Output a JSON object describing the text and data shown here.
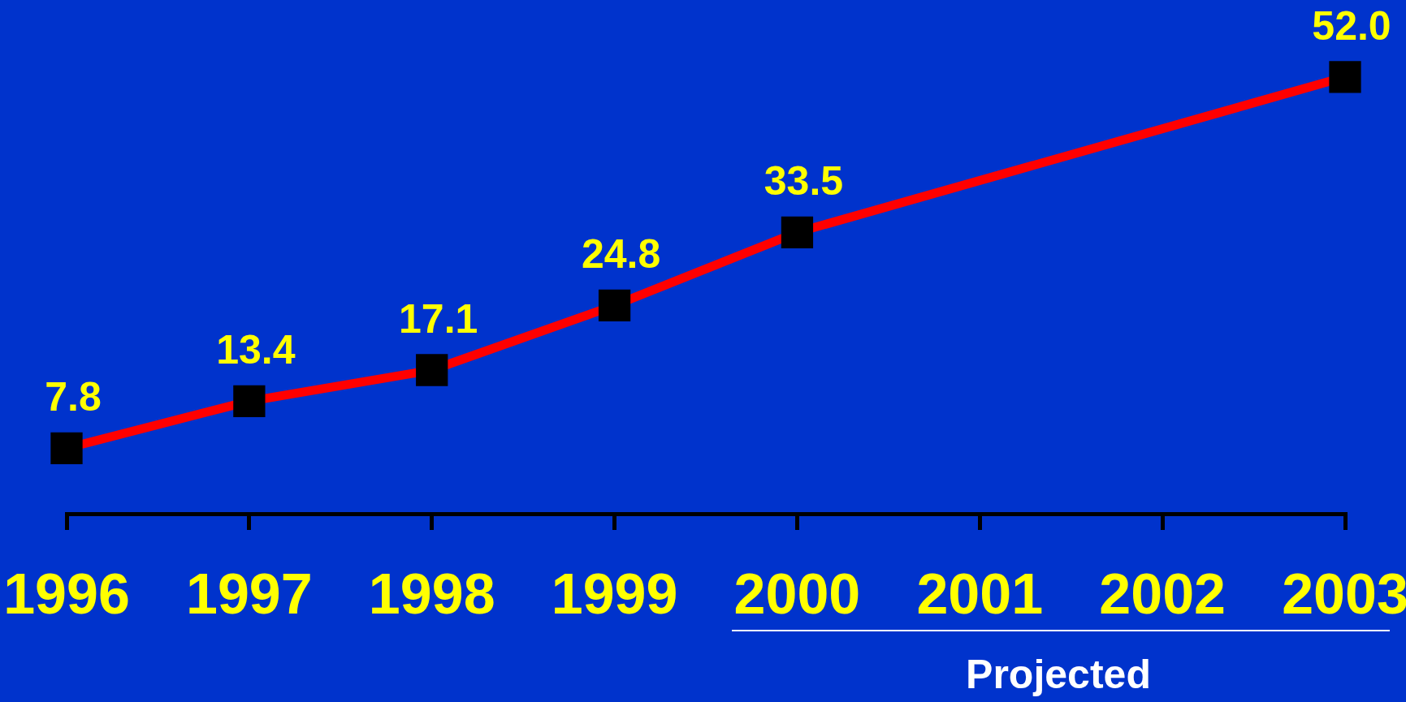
{
  "chart_data": {
    "type": "line",
    "x": [
      1996,
      1997,
      1998,
      1999,
      2000,
      2003
    ],
    "values": [
      7.8,
      13.4,
      17.1,
      24.8,
      33.5,
      52.0
    ],
    "value_labels": [
      "7.8",
      "13.4",
      "17.1",
      "24.8",
      "33.5",
      "52.0"
    ],
    "color": "#ff0000",
    "colors": [
      "#000000",
      "#000000",
      "#000000",
      "#000000",
      "#000000",
      "#000000"
    ],
    "marker": "square",
    "xlim": [
      1996,
      2003
    ],
    "xticks": [
      1996,
      1997,
      1998,
      1999,
      2000,
      2001,
      2002,
      2003
    ],
    "tick_labels": "x",
    "annotations": [
      "Projected"
    ]
  }
}
